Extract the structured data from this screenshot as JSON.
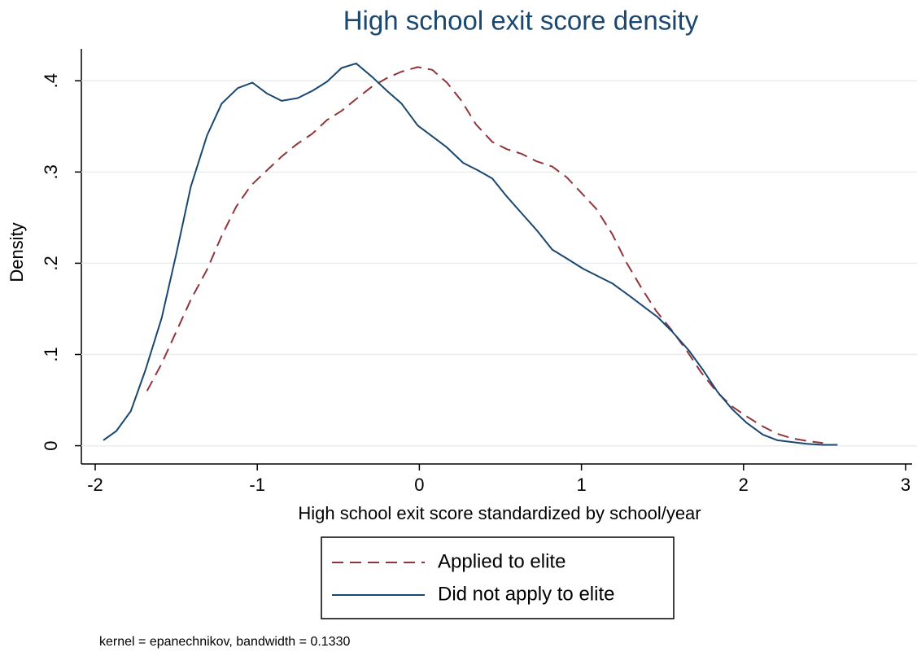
{
  "chart_data": {
    "type": "line",
    "title": "High school exit score density",
    "x_label": "High school exit score standardized by school/year",
    "y_label": "Density",
    "note": "kernel = epanechnikov, bandwidth = 0.1330",
    "xlim": [
      -2,
      3
    ],
    "xticks": [
      -2,
      -1,
      0,
      1,
      2,
      3
    ],
    "ylim": [
      -0.02,
      0.435
    ],
    "yticks": [
      0,
      {
        "value": 0.1,
        "label": ".1"
      },
      {
        "value": 0.2,
        "label": ".2"
      },
      {
        "value": 0.3,
        "label": ".3"
      },
      {
        "value": 0.4,
        "label": ".4"
      }
    ],
    "grid": true,
    "legend": "bottom",
    "series": [
      {
        "name": "Applied to elite",
        "color": "#90353b",
        "dash": true,
        "x": [
          -1.68,
          -1.59,
          -1.5,
          -1.41,
          -1.31,
          -1.22,
          -1.13,
          -1.04,
          -0.94,
          -0.85,
          -0.76,
          -0.66,
          -0.57,
          -0.48,
          -0.39,
          -0.29,
          -0.2,
          -0.11,
          -0.01,
          0.08,
          0.17,
          0.26,
          0.35,
          0.45,
          0.54,
          0.63,
          0.72,
          0.82,
          0.91,
          1.0,
          1.09,
          1.19,
          1.28,
          1.37,
          1.46,
          1.56,
          1.65,
          1.74,
          1.84,
          1.93,
          2.02,
          2.12,
          2.21,
          2.3,
          2.4,
          2.49
        ],
        "values": [
          0.06,
          0.09,
          0.125,
          0.16,
          0.193,
          0.23,
          0.262,
          0.285,
          0.302,
          0.317,
          0.33,
          0.342,
          0.357,
          0.367,
          0.38,
          0.394,
          0.403,
          0.41,
          0.415,
          0.412,
          0.398,
          0.378,
          0.352,
          0.333,
          0.325,
          0.32,
          0.312,
          0.306,
          0.294,
          0.277,
          0.26,
          0.232,
          0.2,
          0.173,
          0.148,
          0.126,
          0.104,
          0.08,
          0.058,
          0.043,
          0.032,
          0.021,
          0.013,
          0.008,
          0.005,
          0.003
        ]
      },
      {
        "name": "Did not apply to elite",
        "color": "#1a476f",
        "dash": false,
        "x": [
          -1.95,
          -1.87,
          -1.78,
          -1.69,
          -1.59,
          -1.5,
          -1.41,
          -1.31,
          -1.22,
          -1.12,
          -1.03,
          -0.94,
          -0.85,
          -0.75,
          -0.66,
          -0.57,
          -0.48,
          -0.39,
          -0.29,
          -0.2,
          -0.11,
          -0.01,
          0.08,
          0.17,
          0.27,
          0.36,
          0.45,
          0.54,
          0.64,
          0.73,
          0.82,
          0.92,
          1.01,
          1.1,
          1.19,
          1.29,
          1.38,
          1.47,
          1.56,
          1.66,
          1.75,
          1.84,
          1.93,
          2.02,
          2.12,
          2.21,
          2.3,
          2.39,
          2.49,
          2.58
        ],
        "values": [
          0.006,
          0.016,
          0.038,
          0.083,
          0.14,
          0.21,
          0.284,
          0.34,
          0.375,
          0.392,
          0.398,
          0.386,
          0.378,
          0.381,
          0.389,
          0.399,
          0.414,
          0.419,
          0.404,
          0.389,
          0.375,
          0.351,
          0.339,
          0.327,
          0.31,
          0.302,
          0.293,
          0.273,
          0.253,
          0.235,
          0.215,
          0.204,
          0.194,
          0.186,
          0.178,
          0.165,
          0.153,
          0.141,
          0.125,
          0.105,
          0.083,
          0.059,
          0.04,
          0.025,
          0.012,
          0.006,
          0.004,
          0.002,
          0.001,
          0.001
        ]
      }
    ]
  }
}
